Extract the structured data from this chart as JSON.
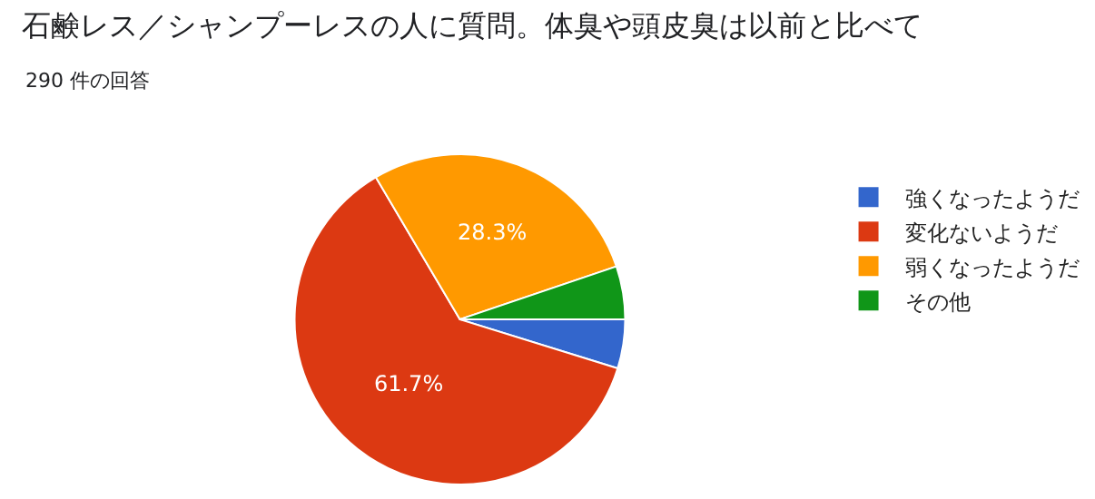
{
  "chart_data": {
    "type": "pie",
    "title": "石鹸レス／シャンプーレスの人に質問。体臭や頭皮臭は以前と比べて",
    "subtitle": "290 件の回答",
    "categories": [
      "強くなったようだ",
      "変化ないようだ",
      "弱くなったようだ",
      "その他"
    ],
    "values": [
      4.8,
      61.7,
      28.3,
      5.2
    ],
    "value_labels": [
      null,
      "61.7%",
      "28.3%",
      null
    ],
    "colors": [
      "#3366cc",
      "#dc3912",
      "#ff9900",
      "#109618"
    ],
    "legend": "right"
  }
}
